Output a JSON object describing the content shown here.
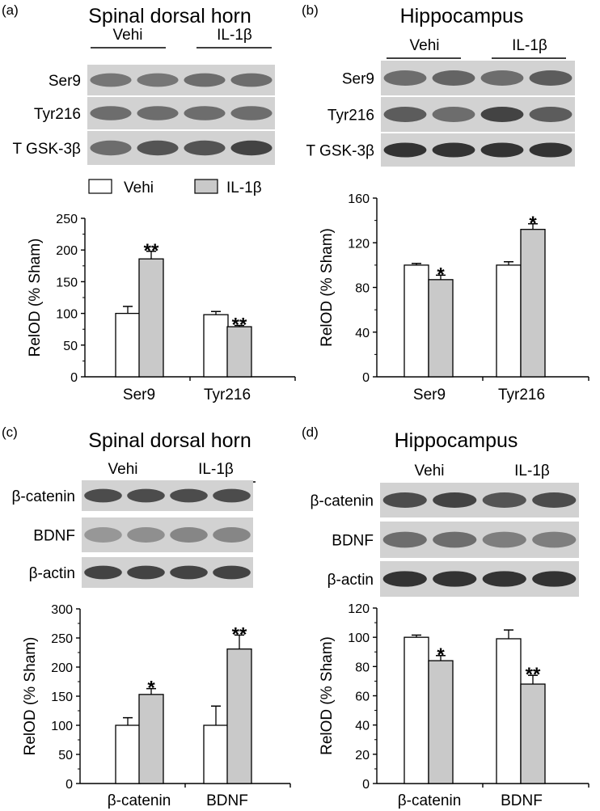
{
  "legend": {
    "vehicle": "Vehi",
    "treatment": "IL-1β"
  },
  "colors": {
    "vehicle": "#ffffff",
    "treatment": "#c9c9c9",
    "stroke": "#000000",
    "blot_bg": "#d2d2d2",
    "band": "#2a2a2a"
  },
  "panels": [
    {
      "letter": "(a)",
      "title": "Spinal dorsal horn",
      "groups": [
        "Vehi",
        "IL-1β"
      ],
      "blots": [
        "Ser9",
        "Tyr216",
        "T GSK-3β"
      ],
      "band_intensity": [
        [
          0.55,
          0.55,
          0.6,
          0.6
        ],
        [
          0.6,
          0.6,
          0.6,
          0.6
        ],
        [
          0.6,
          0.75,
          0.75,
          0.85
        ]
      ],
      "show_legend": true
    },
    {
      "letter": "(b)",
      "title": "Hippocampus",
      "groups": [
        "Vehi",
        "IL-1β"
      ],
      "blots": [
        "Ser9",
        "Tyr216",
        "T GSK-3β"
      ],
      "band_intensity": [
        [
          0.6,
          0.65,
          0.6,
          0.7
        ],
        [
          0.7,
          0.6,
          0.85,
          0.7
        ],
        [
          0.95,
          0.95,
          0.95,
          0.95
        ]
      ],
      "show_legend": false
    },
    {
      "letter": "(c)",
      "title": "Spinal dorsal horn",
      "groups": [
        "Vehi",
        "IL-1β"
      ],
      "blots": [
        "β-catenin",
        "BDNF",
        "β-actin"
      ],
      "band_intensity": [
        [
          0.8,
          0.8,
          0.8,
          0.8
        ],
        [
          0.35,
          0.4,
          0.45,
          0.45
        ],
        [
          0.85,
          0.85,
          0.85,
          0.85
        ]
      ],
      "show_legend": false
    },
    {
      "letter": "(d)",
      "title": "Hippocampus",
      "groups": [
        "Vehi",
        "IL-1β"
      ],
      "blots": [
        "β-catenin",
        "BDNF",
        "β-actin"
      ],
      "band_intensity": [
        [
          0.8,
          0.85,
          0.75,
          0.8
        ],
        [
          0.6,
          0.6,
          0.5,
          0.5
        ],
        [
          0.95,
          0.95,
          0.95,
          0.95
        ]
      ],
      "show_legend": false
    }
  ],
  "chart_data": [
    {
      "type": "bar",
      "panel": "(a)",
      "ylabel": "RelOD (% Sham)",
      "ylim": [
        0,
        250
      ],
      "yticks": [
        0,
        50,
        100,
        150,
        200,
        250
      ],
      "categories": [
        "Ser9",
        "Tyr216"
      ],
      "series": [
        {
          "name": "Vehi",
          "values": [
            100,
            98
          ],
          "errors": [
            11,
            5
          ]
        },
        {
          "name": "IL-1β",
          "values": [
            186,
            79
          ],
          "errors": [
            12,
            2
          ]
        }
      ],
      "annotations": [
        {
          "category": "Ser9",
          "series": "IL-1β",
          "text": "**"
        },
        {
          "category": "Tyr216",
          "series": "IL-1β",
          "text": "**"
        }
      ]
    },
    {
      "type": "bar",
      "panel": "(b)",
      "ylabel": "RelOD (% Sham)",
      "ylim": [
        0,
        160
      ],
      "yticks": [
        0,
        40,
        80,
        120,
        160
      ],
      "categories": [
        "Ser9",
        "Tyr216"
      ],
      "series": [
        {
          "name": "Vehi",
          "values": [
            100,
            100
          ],
          "errors": [
            1.5,
            3
          ]
        },
        {
          "name": "IL-1β",
          "values": [
            87,
            132
          ],
          "errors": [
            4,
            5
          ]
        }
      ],
      "annotations": [
        {
          "category": "Ser9",
          "series": "IL-1β",
          "text": "*"
        },
        {
          "category": "Tyr216",
          "series": "IL-1β",
          "text": "*"
        }
      ]
    },
    {
      "type": "bar",
      "panel": "(c)",
      "ylabel": "RelOD (% Sham)",
      "ylim": [
        0,
        300
      ],
      "yticks": [
        0,
        50,
        100,
        150,
        200,
        250,
        300
      ],
      "categories": [
        "β-catenin",
        "BDNF"
      ],
      "series": [
        {
          "name": "Vehi",
          "values": [
            100,
            100
          ],
          "errors": [
            13,
            33
          ]
        },
        {
          "name": "IL-1β",
          "values": [
            153,
            231
          ],
          "errors": [
            10,
            24
          ]
        }
      ],
      "annotations": [
        {
          "category": "β-catenin",
          "series": "IL-1β",
          "text": "*"
        },
        {
          "category": "BDNF",
          "series": "IL-1β",
          "text": "**"
        }
      ]
    },
    {
      "type": "bar",
      "panel": "(d)",
      "ylabel": "RelOD (% Sham)",
      "ylim": [
        0,
        120
      ],
      "yticks": [
        0,
        20,
        40,
        60,
        80,
        100,
        120
      ],
      "categories": [
        "β-catenin",
        "BDNF"
      ],
      "series": [
        {
          "name": "Vehi",
          "values": [
            100,
            99
          ],
          "errors": [
            1.5,
            6
          ]
        },
        {
          "name": "IL-1β",
          "values": [
            84,
            68
          ],
          "errors": [
            3.5,
            6
          ]
        }
      ],
      "annotations": [
        {
          "category": "β-catenin",
          "series": "IL-1β",
          "text": "*"
        },
        {
          "category": "BDNF",
          "series": "IL-1β",
          "text": "**"
        }
      ]
    }
  ]
}
